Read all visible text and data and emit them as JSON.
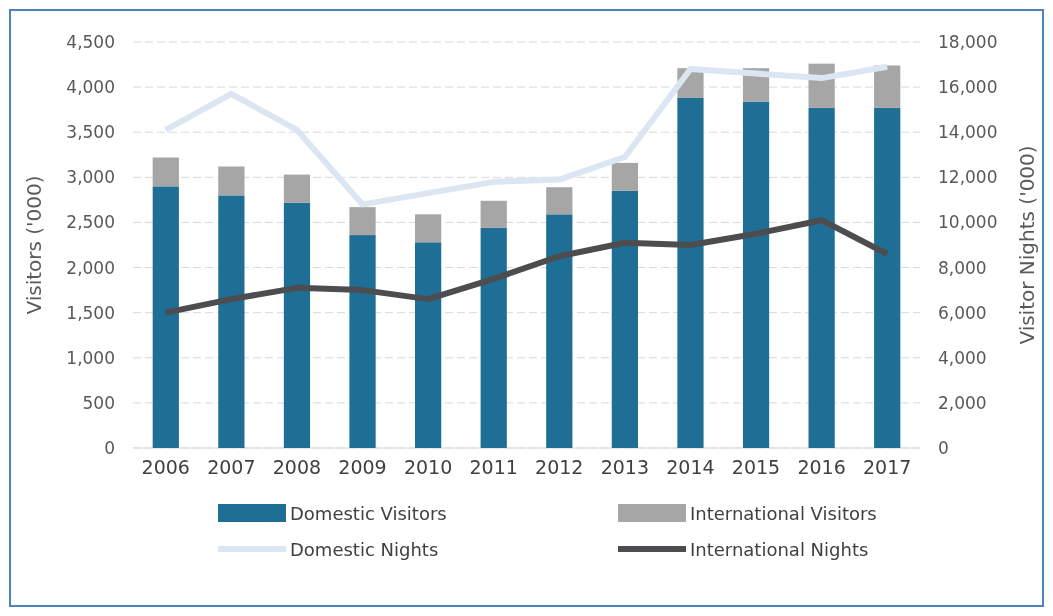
{
  "chart_data": {
    "type": "bar",
    "stacked": true,
    "categories": [
      "2006",
      "2007",
      "2008",
      "2009",
      "2010",
      "2011",
      "2012",
      "2013",
      "2014",
      "2015",
      "2016",
      "2017"
    ],
    "ylabel": "Visitors ('000)",
    "y2label": "Visitor Nights ('000)",
    "ylim": [
      0,
      4500
    ],
    "yticks": [
      0,
      {
        "value": 500,
        "label": "500"
      },
      {
        "value": 1000,
        "label": "1,000"
      },
      {
        "value": 1500,
        "label": "1,500"
      },
      {
        "value": 2000,
        "label": "2,000"
      },
      {
        "value": 2500,
        "label": "2,500"
      },
      {
        "value": 3000,
        "label": "3,000"
      },
      {
        "value": 3500,
        "label": "3,500"
      },
      {
        "value": 4000,
        "label": "4,000"
      },
      {
        "value": 4500,
        "label": "4,500"
      }
    ],
    "y2lim": [
      0,
      18000
    ],
    "y2ticks": [
      0,
      {
        "value": 2000,
        "label": "2,000"
      },
      {
        "value": 4000,
        "label": "4,000"
      },
      {
        "value": 6000,
        "label": "6,000"
      },
      {
        "value": 8000,
        "label": "8,000"
      },
      {
        "value": 10000,
        "label": "10,000"
      },
      {
        "value": 12000,
        "label": "12,000"
      },
      {
        "value": 14000,
        "label": "14,000"
      },
      {
        "value": 16000,
        "label": "16,000"
      },
      {
        "value": 18000,
        "label": "18,000"
      }
    ],
    "grid": "y",
    "legend": "bottom",
    "line_style": "solid",
    "marker": "none",
    "series": [
      {
        "name": "Domestic Visitors",
        "color": "#1f6e96",
        "values": [
          2900,
          2800,
          2720,
          2360,
          2280,
          2440,
          2590,
          2850,
          3880,
          3840,
          3770,
          3770
        ]
      },
      {
        "name": "International Visitors",
        "color": "#a6a6a6",
        "values": [
          320,
          320,
          310,
          310,
          310,
          300,
          300,
          310,
          330,
          370,
          490,
          470
        ]
      },
      {
        "name": "Domestic Nights",
        "type": "line",
        "axis": "y2",
        "color": "#dce6f2",
        "values": [
          14100,
          15700,
          14100,
          10800,
          11300,
          11800,
          11900,
          12900,
          16800,
          16600,
          16400,
          16900
        ]
      },
      {
        "name": "International Nights",
        "type": "line",
        "axis": "y2",
        "color": "#4d4d4f",
        "values": [
          6000,
          6600,
          7100,
          7000,
          6600,
          7500,
          8500,
          9100,
          9000,
          9500,
          10100,
          8600
        ]
      }
    ]
  }
}
